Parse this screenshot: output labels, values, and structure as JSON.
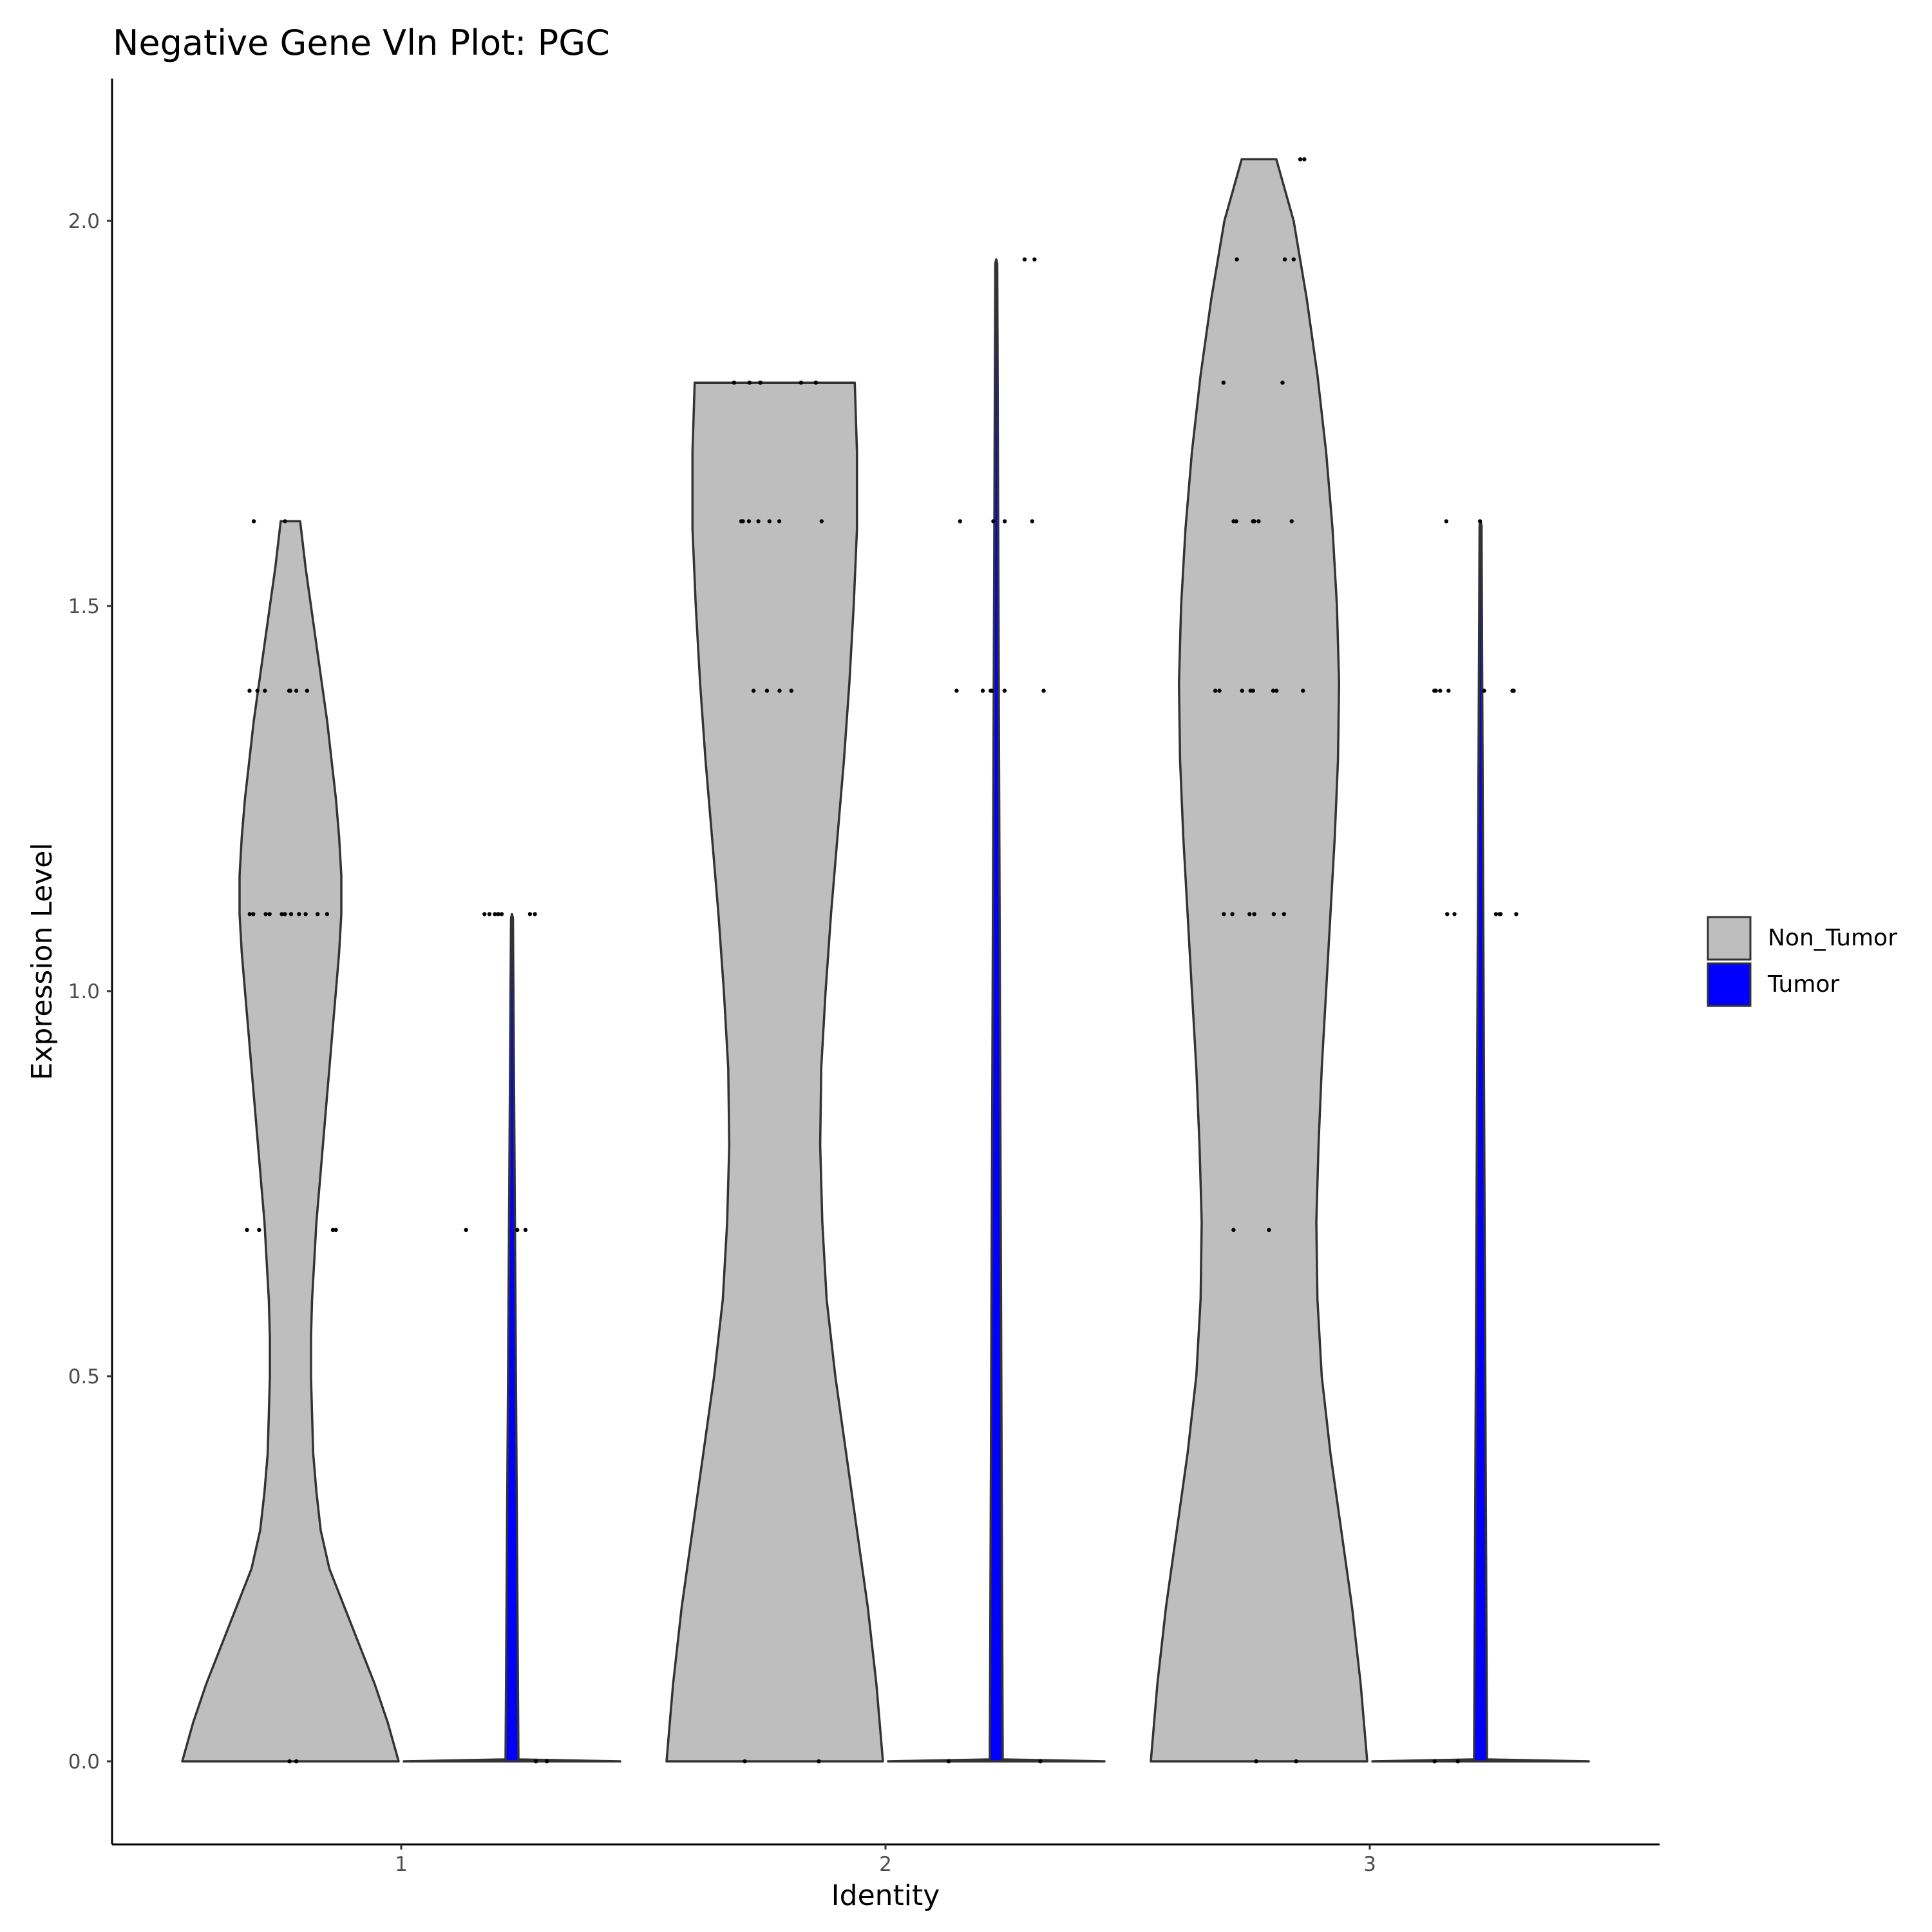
{
  "chart_data": {
    "type": "violin",
    "title": "Negative Gene Vln Plot: PGC",
    "xlabel": "Identity",
    "ylabel": "Expression Level",
    "categories": [
      "1",
      "2",
      "3"
    ],
    "ylim": [
      -0.105,
      2.28
    ],
    "yticks": [
      "0.0",
      "0.5",
      "1.0",
      "1.5",
      "2.0"
    ],
    "ytick_values": [
      0,
      0.5,
      1.0,
      1.5,
      2.0
    ],
    "grid": false,
    "legend_position": "right",
    "series": [
      {
        "name": "Non_Tumor",
        "fill": "#bebebe",
        "violins": [
          {
            "category": "1",
            "max": 1.61,
            "profile": [
              [
                0,
                0.5
              ],
              [
                0.05,
                0.45
              ],
              [
                0.1,
                0.39
              ],
              [
                0.15,
                0.32
              ],
              [
                0.2,
                0.25
              ],
              [
                0.25,
                0.18
              ],
              [
                0.3,
                0.14
              ],
              [
                0.35,
                0.12
              ],
              [
                0.4,
                0.105
              ],
              [
                0.45,
                0.1
              ],
              [
                0.5,
                0.095
              ],
              [
                0.55,
                0.095
              ],
              [
                0.6,
                0.1
              ],
              [
                0.65,
                0.11
              ],
              [
                0.7,
                0.12
              ],
              [
                0.75,
                0.135
              ],
              [
                0.8,
                0.15
              ],
              [
                0.85,
                0.165
              ],
              [
                0.9,
                0.18
              ],
              [
                0.95,
                0.195
              ],
              [
                1.0,
                0.21
              ],
              [
                1.05,
                0.225
              ],
              [
                1.1,
                0.235
              ],
              [
                1.15,
                0.235
              ],
              [
                1.2,
                0.225
              ],
              [
                1.25,
                0.21
              ],
              [
                1.3,
                0.19
              ],
              [
                1.35,
                0.17
              ],
              [
                1.4,
                0.145
              ],
              [
                1.45,
                0.12
              ],
              [
                1.5,
                0.095
              ],
              [
                1.55,
                0.07
              ],
              [
                1.61,
                0.045
              ]
            ],
            "points": [
              [
                0,
                0
              ],
              [
                1.1,
                0.8
              ],
              [
                1.39,
                0.5
              ],
              [
                0.69,
                0.3
              ],
              [
                1.61,
                0.1
              ]
            ]
          },
          {
            "category": "2",
            "max": 1.79,
            "profile": [
              [
                0,
                0.5
              ],
              [
                0.1,
                0.47
              ],
              [
                0.2,
                0.43
              ],
              [
                0.3,
                0.38
              ],
              [
                0.4,
                0.33
              ],
              [
                0.5,
                0.28
              ],
              [
                0.6,
                0.24
              ],
              [
                0.7,
                0.22
              ],
              [
                0.8,
                0.21
              ],
              [
                0.9,
                0.215
              ],
              [
                1.0,
                0.235
              ],
              [
                1.1,
                0.26
              ],
              [
                1.2,
                0.29
              ],
              [
                1.3,
                0.32
              ],
              [
                1.4,
                0.345
              ],
              [
                1.5,
                0.365
              ],
              [
                1.6,
                0.38
              ],
              [
                1.7,
                0.38
              ],
              [
                1.79,
                0.37
              ]
            ],
            "points": [
              [
                0,
                0
              ],
              [
                1.39,
                0.3
              ],
              [
                1.61,
                0.5
              ],
              [
                1.79,
                0.4
              ]
            ]
          },
          {
            "category": "3",
            "max": 2.08,
            "profile": [
              [
                0,
                0.5
              ],
              [
                0.1,
                0.47
              ],
              [
                0.2,
                0.43
              ],
              [
                0.3,
                0.38
              ],
              [
                0.4,
                0.33
              ],
              [
                0.5,
                0.29
              ],
              [
                0.6,
                0.27
              ],
              [
                0.7,
                0.265
              ],
              [
                0.8,
                0.275
              ],
              [
                0.9,
                0.29
              ],
              [
                1.0,
                0.31
              ],
              [
                1.1,
                0.33
              ],
              [
                1.2,
                0.35
              ],
              [
                1.3,
                0.365
              ],
              [
                1.4,
                0.37
              ],
              [
                1.5,
                0.36
              ],
              [
                1.6,
                0.34
              ],
              [
                1.7,
                0.31
              ],
              [
                1.8,
                0.27
              ],
              [
                1.9,
                0.22
              ],
              [
                2.0,
                0.16
              ],
              [
                2.08,
                0.08
              ]
            ],
            "points": [
              [
                0,
                0
              ],
              [
                0.69,
                0.1
              ],
              [
                1.1,
                0.4
              ],
              [
                1.39,
                0.6
              ],
              [
                1.61,
                0.5
              ],
              [
                1.79,
                0.1
              ],
              [
                1.95,
                0.2
              ],
              [
                2.08,
                0.1
              ]
            ]
          }
        ]
      },
      {
        "name": "Tumor",
        "fill": "#0000ff",
        "violins": [
          {
            "category": "1",
            "max": 1.1,
            "points": [
              [
                0,
                0
              ],
              [
                0.69,
                0.2
              ],
              [
                1.1,
                0.5
              ]
            ]
          },
          {
            "category": "2",
            "max": 1.95,
            "points": [
              [
                0,
                0
              ],
              [
                1.39,
                0.4
              ],
              [
                1.61,
                0.3
              ],
              [
                1.95,
                0.1
              ]
            ]
          },
          {
            "category": "3",
            "max": 1.61,
            "points": [
              [
                0,
                0
              ],
              [
                1.1,
                0.4
              ],
              [
                1.39,
                0.6
              ],
              [
                1.61,
                0.1
              ]
            ]
          }
        ]
      }
    ]
  }
}
